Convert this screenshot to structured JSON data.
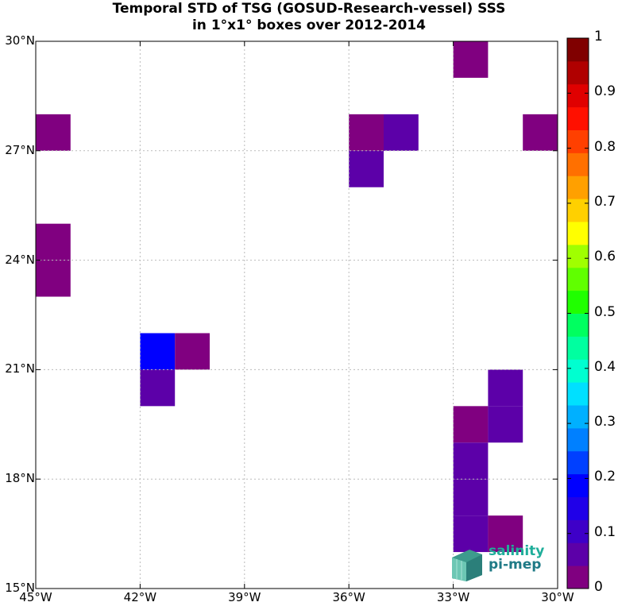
{
  "title": {
    "line1": "Temporal STD of TSG (GOSUD-Research-vessel) SSS",
    "line2": "in 1°x1° boxes over 2012-2014"
  },
  "axes": {
    "lon_range": [
      -45,
      -30
    ],
    "lat_range": [
      15,
      30
    ],
    "x_ticks": [
      {
        "value": -45,
        "label": "45°W"
      },
      {
        "value": -42,
        "label": "42°W"
      },
      {
        "value": -39,
        "label": "39°W"
      },
      {
        "value": -36,
        "label": "36°W"
      },
      {
        "value": -33,
        "label": "33°W"
      },
      {
        "value": -30,
        "label": "30°W"
      }
    ],
    "y_ticks": [
      {
        "value": 30,
        "label": "30°N"
      },
      {
        "value": 27,
        "label": "27°N"
      },
      {
        "value": 24,
        "label": "24°N"
      },
      {
        "value": 21,
        "label": "21°N"
      },
      {
        "value": 18,
        "label": "18°N"
      },
      {
        "value": 15,
        "label": "15°N"
      }
    ],
    "grid": true
  },
  "colorbar": {
    "range": [
      0,
      1
    ],
    "labels": [
      "0",
      "0.1",
      "0.2",
      "0.3",
      "0.4",
      "0.5",
      "0.6",
      "0.7",
      "0.8",
      "0.9",
      "1"
    ],
    "colors": [
      "#800080",
      "#5c00a8",
      "#3e00c8",
      "#2000e8",
      "#0000ff",
      "#0040ff",
      "#0080ff",
      "#00b0ff",
      "#00e0ff",
      "#00ffd0",
      "#00ffa0",
      "#00ff60",
      "#20ff00",
      "#60ff00",
      "#a0ff00",
      "#ffff00",
      "#ffd000",
      "#ffa000",
      "#ff7000",
      "#ff4000",
      "#ff1000",
      "#e00000",
      "#b00000",
      "#800000"
    ]
  },
  "chart_data": {
    "type": "heatmap",
    "cell_size_deg": 1,
    "cells": [
      {
        "lon": -33,
        "lat": 29,
        "value": 0.02
      },
      {
        "lon": -45,
        "lat": 27,
        "value": 0.02
      },
      {
        "lon": -36,
        "lat": 27,
        "value": 0.02
      },
      {
        "lon": -35,
        "lat": 27,
        "value": 0.08
      },
      {
        "lon": -31,
        "lat": 27,
        "value": 0.02
      },
      {
        "lon": -36,
        "lat": 26,
        "value": 0.08
      },
      {
        "lon": -45,
        "lat": 24,
        "value": 0.02
      },
      {
        "lon": -45,
        "lat": 23,
        "value": 0.02
      },
      {
        "lon": -42,
        "lat": 21,
        "value": 0.2
      },
      {
        "lon": -41,
        "lat": 21,
        "value": 0.02
      },
      {
        "lon": -42,
        "lat": 20,
        "value": 0.07
      },
      {
        "lon": -32,
        "lat": 20,
        "value": 0.08
      },
      {
        "lon": -33,
        "lat": 19,
        "value": 0.02
      },
      {
        "lon": -32,
        "lat": 19,
        "value": 0.08
      },
      {
        "lon": -33,
        "lat": 18,
        "value": 0.08
      },
      {
        "lon": -33,
        "lat": 17,
        "value": 0.08
      },
      {
        "lon": -33,
        "lat": 16,
        "value": 0.08
      },
      {
        "lon": -32,
        "lat": 16,
        "value": 0.02
      }
    ]
  },
  "logo": {
    "line1": "salinity",
    "line2": "pi-mep"
  }
}
